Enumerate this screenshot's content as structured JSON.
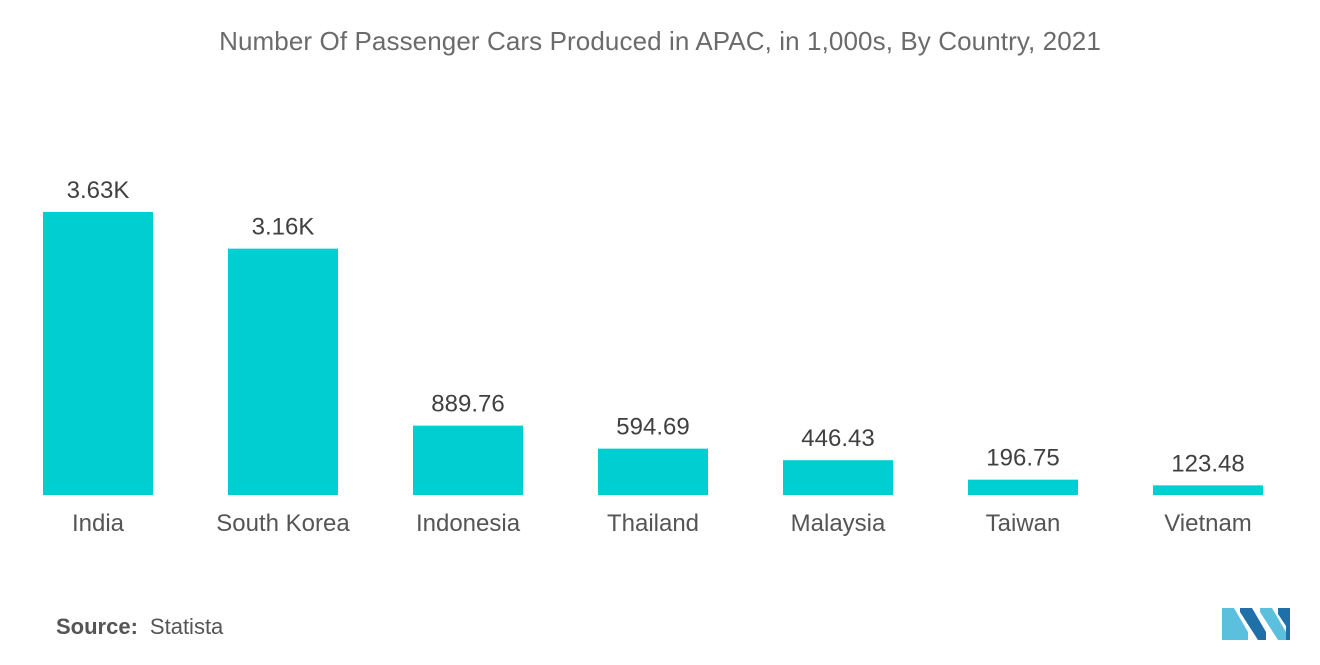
{
  "chart_data": {
    "type": "bar",
    "title": "Number Of Passenger Cars Produced in APAC, in 1,000s, By Country, 2021",
    "categories": [
      "India",
      "South Korea",
      "Indonesia",
      "Thailand",
      "Malaysia",
      "Taiwan",
      "Vietnam"
    ],
    "values": [
      3630,
      3160,
      889.76,
      594.69,
      446.43,
      196.75,
      123.48
    ],
    "data_labels": [
      "3.63K",
      "3.16K",
      "889.76",
      "594.69",
      "446.43",
      "196.75",
      "123.48"
    ],
    "xlabel": "",
    "ylabel": "",
    "ylim": [
      0,
      3630
    ],
    "grid": false,
    "legend": "none",
    "bar_color": "#00CED1"
  },
  "source": {
    "label": "Source:",
    "value": "Statista"
  },
  "logo": {
    "icon": "mordor-intelligence-logo-icon",
    "colors": [
      "#5BC0DE",
      "#1F6FA8"
    ]
  }
}
